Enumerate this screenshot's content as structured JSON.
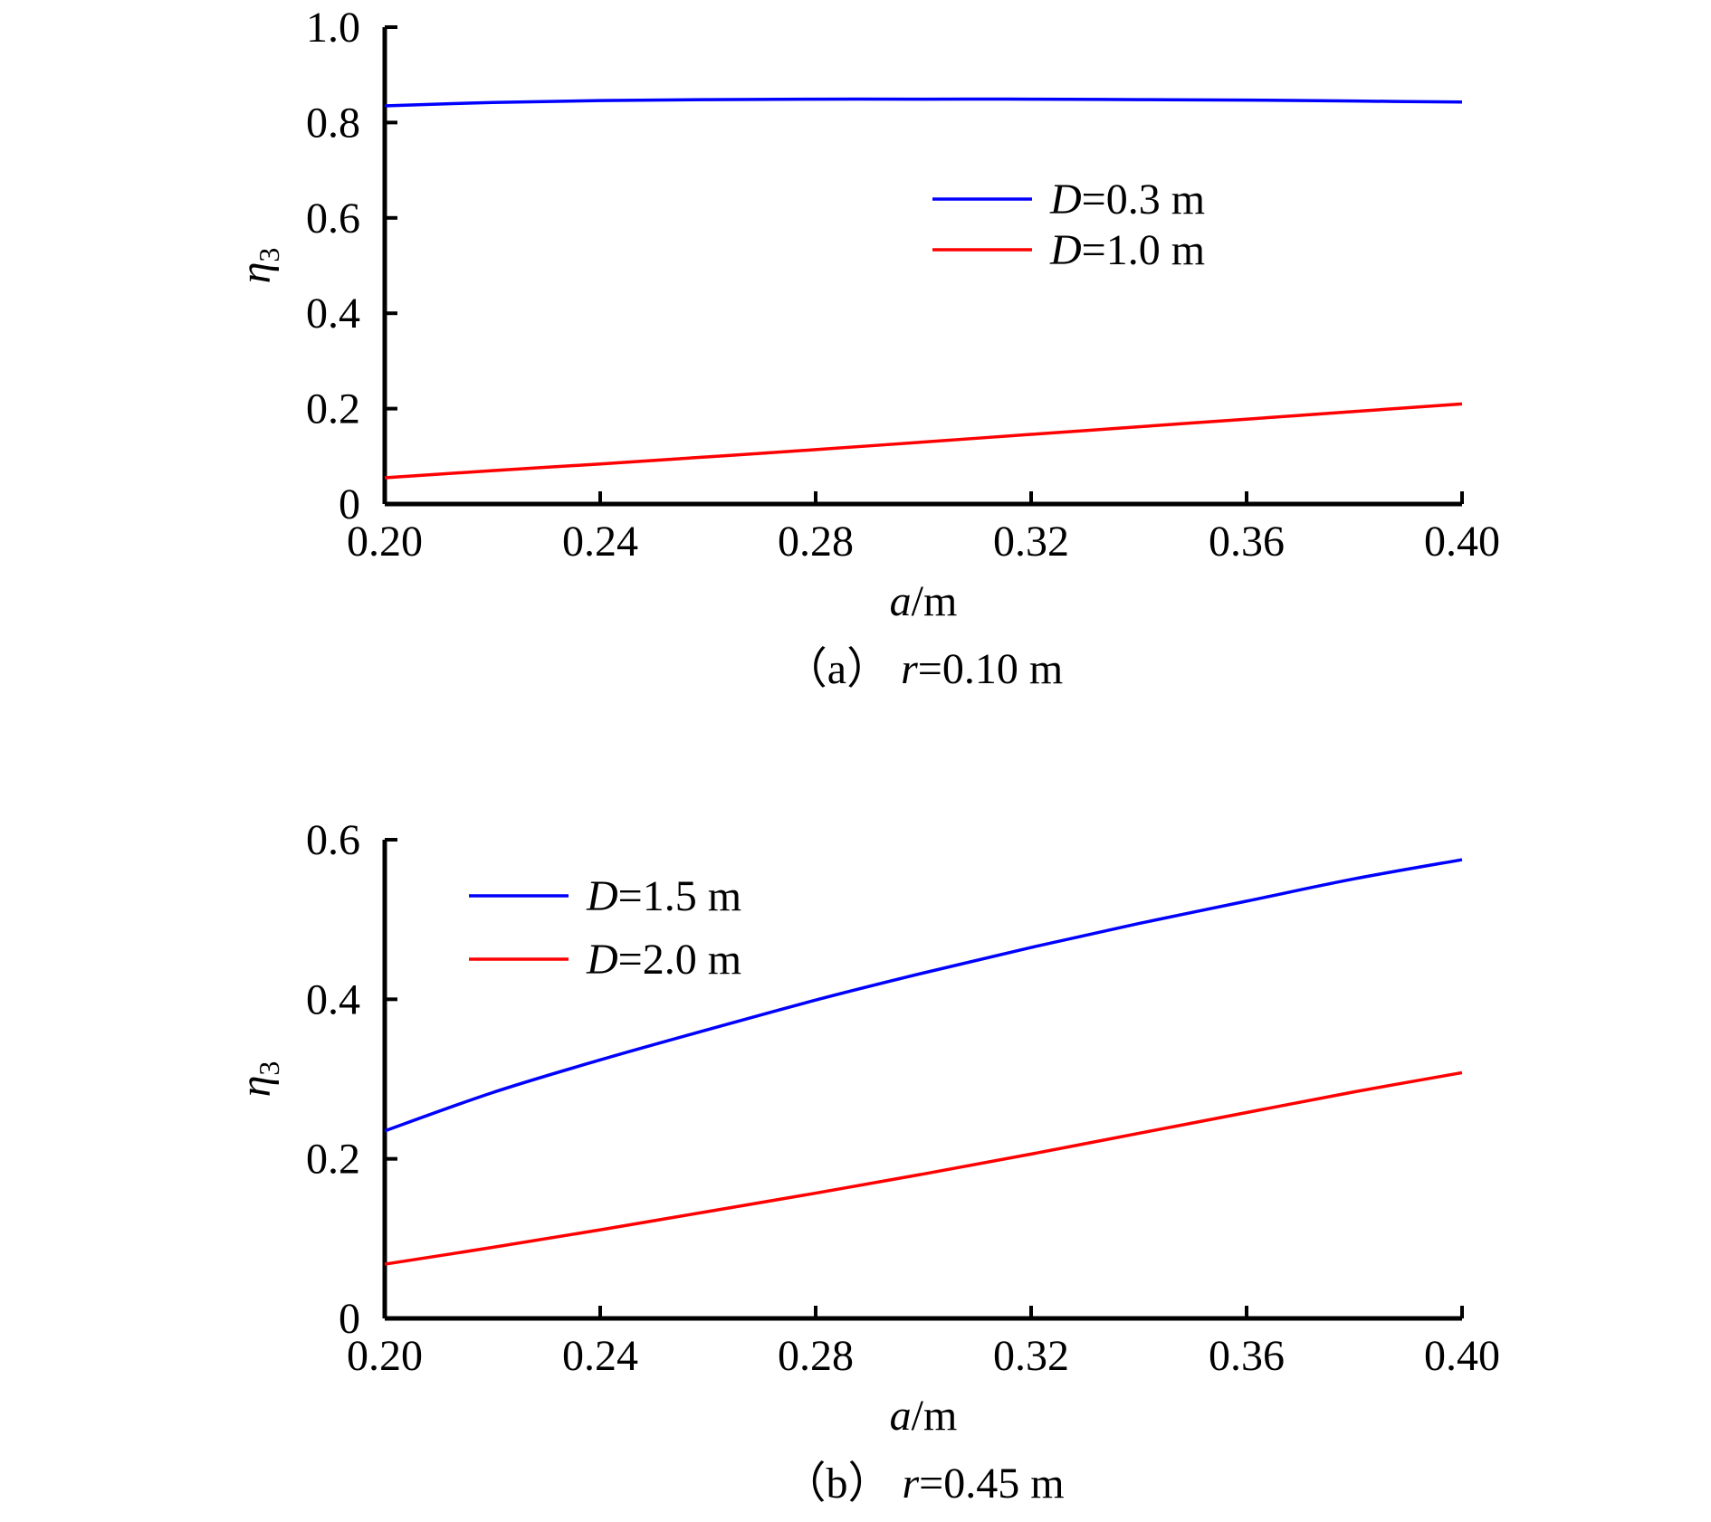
{
  "chart_data": [
    {
      "type": "line",
      "caption": "（a）r=0.10 m",
      "xlabel": "a/m",
      "ylabel": "η3",
      "xlim": [
        0.2,
        0.4
      ],
      "ylim": [
        0,
        1.0
      ],
      "xticks": [
        "0.20",
        "0.24",
        "0.28",
        "0.32",
        "0.36",
        "0.40"
      ],
      "yticks": [
        "0",
        "0.2",
        "0.4",
        "0.6",
        "0.8",
        "1.0"
      ],
      "grid": false,
      "legend_position": "upper-right",
      "x": [
        0.2,
        0.22,
        0.24,
        0.26,
        0.28,
        0.3,
        0.32,
        0.34,
        0.36,
        0.38,
        0.4
      ],
      "series": [
        {
          "name": "D=0.3 m",
          "color": "#0000ff",
          "values": [
            0.835,
            0.842,
            0.846,
            0.848,
            0.849,
            0.849,
            0.849,
            0.848,
            0.847,
            0.845,
            0.843
          ]
        },
        {
          "name": "D=1.0 m",
          "color": "#ff0000",
          "values": [
            0.055,
            0.07,
            0.084,
            0.099,
            0.114,
            0.13,
            0.146,
            0.162,
            0.178,
            0.194,
            0.21
          ]
        }
      ]
    },
    {
      "type": "line",
      "caption": "（b）r=0.45 m",
      "xlabel": "a/m",
      "ylabel": "η3",
      "xlim": [
        0.2,
        0.4
      ],
      "ylim": [
        0,
        0.6
      ],
      "xticks": [
        "0.20",
        "0.24",
        "0.28",
        "0.32",
        "0.36",
        "0.40"
      ],
      "yticks": [
        "0",
        "0.2",
        "0.4",
        "0.6"
      ],
      "grid": false,
      "legend_position": "upper-left",
      "x": [
        0.2,
        0.22,
        0.24,
        0.26,
        0.28,
        0.3,
        0.32,
        0.34,
        0.36,
        0.38,
        0.4
      ],
      "series": [
        {
          "name": "D=1.5 m",
          "color": "#0000ff",
          "values": [
            0.235,
            0.283,
            0.324,
            0.362,
            0.399,
            0.433,
            0.465,
            0.495,
            0.523,
            0.551,
            0.575
          ]
        },
        {
          "name": "D=2.0 m",
          "color": "#ff0000",
          "values": [
            0.068,
            0.089,
            0.111,
            0.134,
            0.157,
            0.181,
            0.206,
            0.232,
            0.258,
            0.284,
            0.308
          ]
        }
      ]
    }
  ]
}
